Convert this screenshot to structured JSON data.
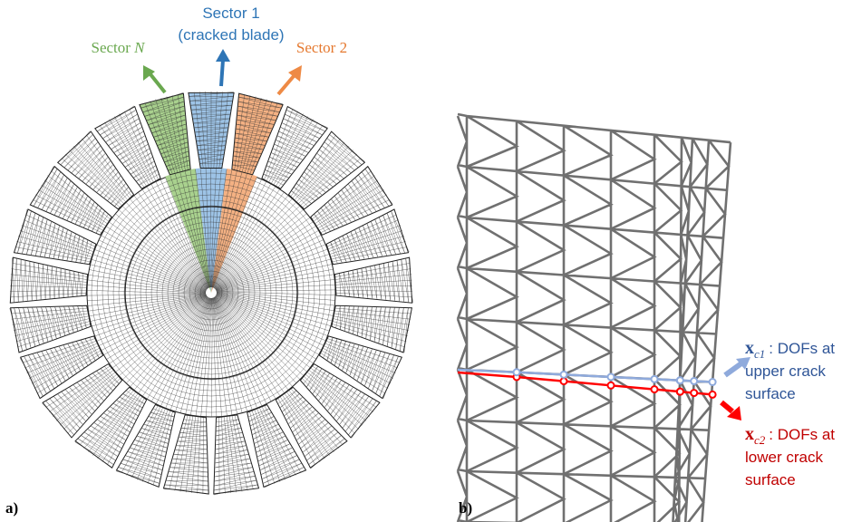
{
  "panel_a": {
    "label": "a)",
    "sector_1": {
      "name": "Sector 1",
      "note": "(cracked blade)"
    },
    "sector_n": {
      "name": "Sector",
      "symbol": "N"
    },
    "sector_2": "Sector 2"
  },
  "panel_b": {
    "label": "b)",
    "upper": {
      "symbol": "x",
      "subscript": "c1",
      "text": ": DOFs at",
      "lines": [
        "upper crack",
        "surface"
      ]
    },
    "lower": {
      "symbol": "x",
      "subscript": "c2",
      "text": ": DOFs at",
      "lines": [
        "lower crack",
        "surface"
      ]
    }
  }
}
